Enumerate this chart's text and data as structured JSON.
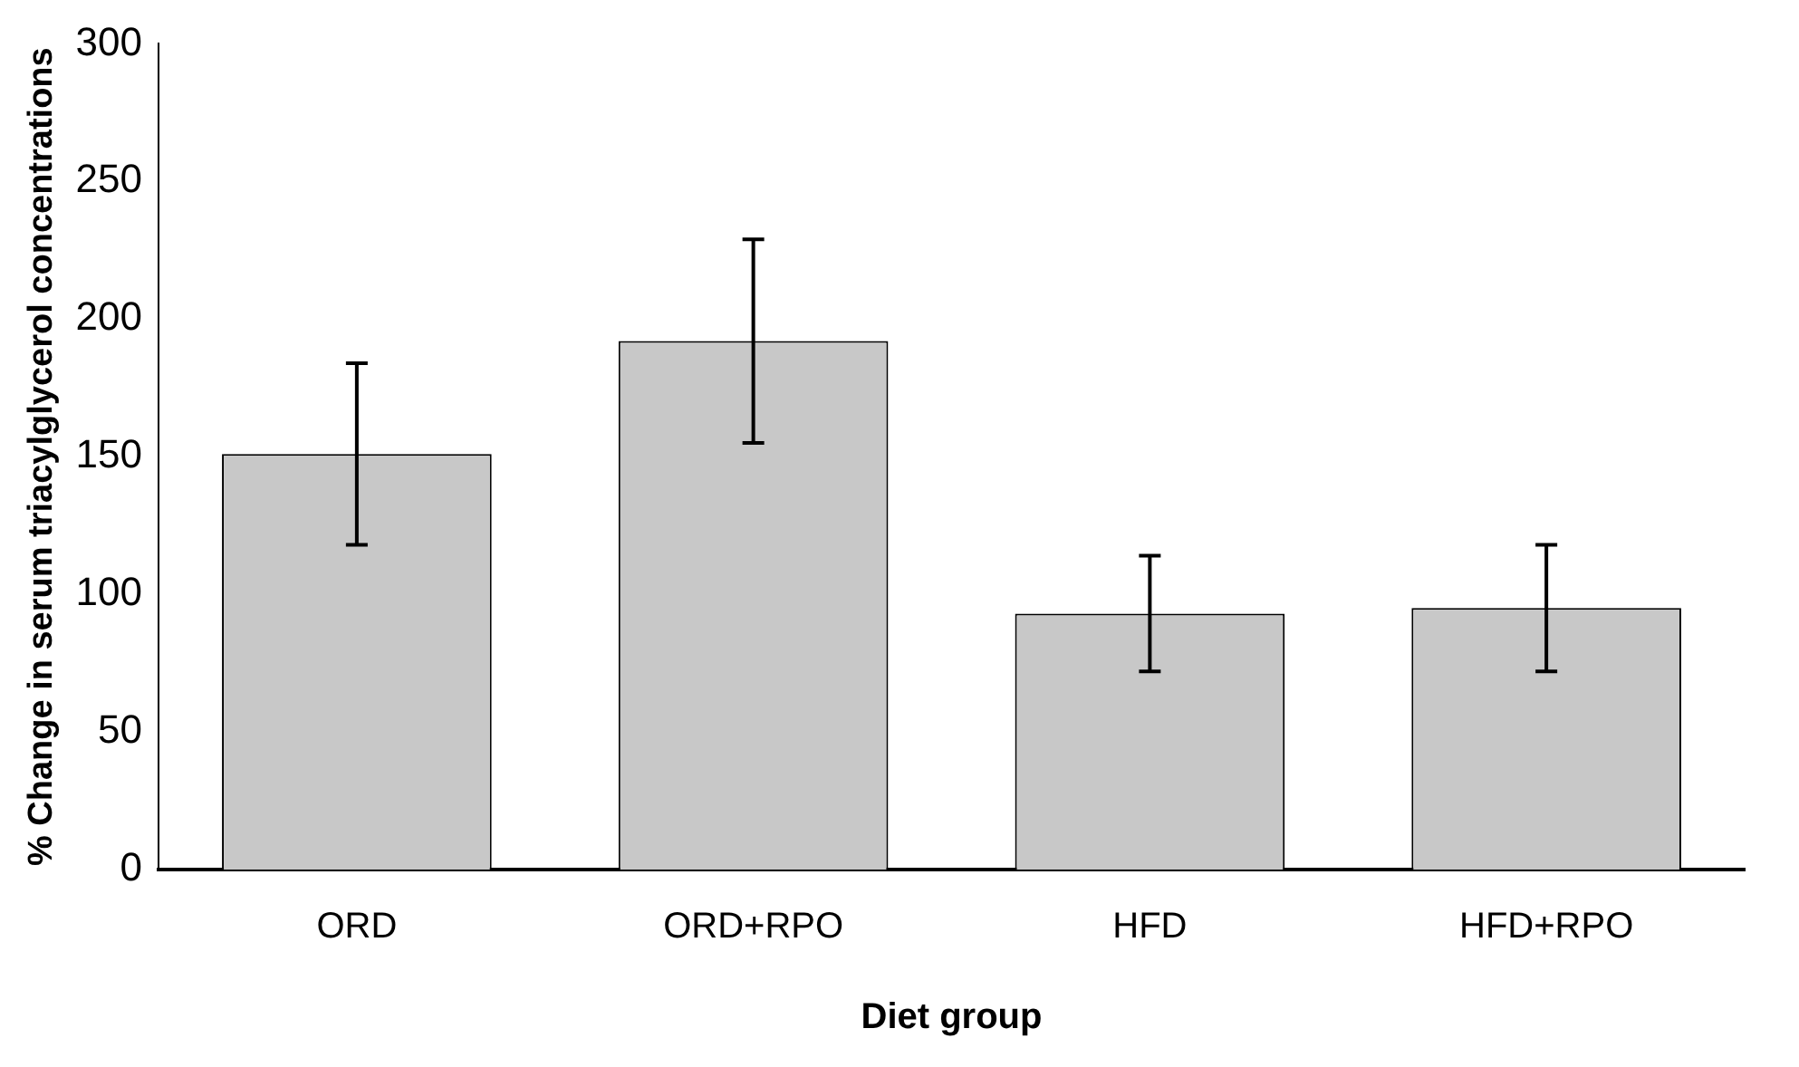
{
  "chart_data": {
    "type": "bar",
    "xlabel": "Diet group",
    "ylabel": "% Change in serum triacylglycerol concentrations",
    "categories": [
      "ORD",
      "ORD+RPO",
      "HFD",
      "HFD+RPO"
    ],
    "values": [
      151,
      192,
      93,
      95
    ],
    "errors": [
      33,
      37,
      21,
      23
    ],
    "color": "#c8c8c8",
    "ylim": [
      0,
      300
    ],
    "yticks": [
      0,
      50,
      100,
      150,
      200,
      250,
      300
    ],
    "grid": false,
    "legend": false
  }
}
